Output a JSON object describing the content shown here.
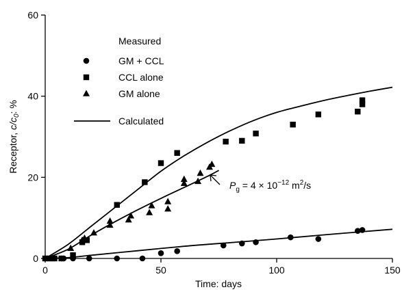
{
  "chart_data": {
    "type": "scatter",
    "xlabel": "Time: days",
    "ylabel_prefix": "Receptor, ",
    "ylabel_var": "c/c",
    "ylabel_sub": "0",
    "ylabel_suffix": ": %",
    "xlim": [
      0,
      150
    ],
    "ylim": [
      0,
      60
    ],
    "xticks": [
      0,
      50,
      100,
      150
    ],
    "yticks": [
      0,
      20,
      40,
      60
    ],
    "grid": false,
    "legend": {
      "placement": "top-left",
      "header": "Measured",
      "line_label": "Calculated"
    },
    "annotation": {
      "var": "P",
      "sub": "g",
      "text": " = 4 × 10",
      "exp": "−12",
      "unit": " m",
      "unit_exp": "2",
      "unit_suffix": "/s",
      "point": [
        71.5,
        21
      ]
    },
    "series": [
      {
        "name": "GM + CCL",
        "marker": "circle",
        "points": [
          [
            0,
            0
          ],
          [
            2,
            0
          ],
          [
            4,
            0
          ],
          [
            7,
            0
          ],
          [
            8,
            0
          ],
          [
            12,
            0
          ],
          [
            19,
            0
          ],
          [
            31,
            0
          ],
          [
            42,
            0
          ],
          [
            50,
            1.3
          ],
          [
            57,
            1.8
          ],
          [
            77,
            3.2
          ],
          [
            85,
            3.7
          ],
          [
            91,
            4
          ],
          [
            106,
            5.2
          ],
          [
            118,
            4.8
          ],
          [
            135,
            6.8
          ],
          [
            137,
            7
          ]
        ]
      },
      {
        "name": "CCL alone",
        "marker": "square",
        "points": [
          [
            0,
            0
          ],
          [
            2,
            0
          ],
          [
            4,
            0
          ],
          [
            7,
            0
          ],
          [
            12,
            0.8
          ],
          [
            16,
            4
          ],
          [
            18,
            4.5
          ],
          [
            31,
            13.2
          ],
          [
            43,
            18.8
          ],
          [
            50,
            23.5
          ],
          [
            57,
            26
          ],
          [
            78,
            28.8
          ],
          [
            85,
            29
          ],
          [
            91,
            30.8
          ],
          [
            107,
            33
          ],
          [
            118,
            35.5
          ],
          [
            135,
            36.2
          ],
          [
            137,
            38
          ],
          [
            137,
            39
          ]
        ]
      },
      {
        "name": "GM alone",
        "marker": "triangle",
        "points": [
          [
            11,
            2.5
          ],
          [
            16,
            4.5
          ],
          [
            17,
            5
          ],
          [
            21,
            6.3
          ],
          [
            28,
            8.2
          ],
          [
            28,
            9.2
          ],
          [
            36,
            9.5
          ],
          [
            37,
            10.5
          ],
          [
            45,
            11.3
          ],
          [
            46,
            13
          ],
          [
            53,
            12.2
          ],
          [
            53,
            14
          ],
          [
            60,
            18.5
          ],
          [
            60,
            19.5
          ],
          [
            66,
            19
          ],
          [
            67,
            21
          ],
          [
            71,
            22.5
          ],
          [
            72,
            23.2
          ]
        ]
      }
    ],
    "calculated_curves": [
      {
        "for": "GM + CCL",
        "points": [
          [
            0,
            0
          ],
          [
            10,
            0.2
          ],
          [
            20,
            0.8
          ],
          [
            40,
            1.9
          ],
          [
            60,
            3
          ],
          [
            80,
            3.9
          ],
          [
            100,
            4.8
          ],
          [
            120,
            5.8
          ],
          [
            150,
            7.2
          ]
        ]
      },
      {
        "for": "CCL alone",
        "points": [
          [
            0,
            0
          ],
          [
            10,
            3.5
          ],
          [
            20,
            8
          ],
          [
            30,
            12.5
          ],
          [
            40,
            17
          ],
          [
            50,
            21.5
          ],
          [
            60,
            25.3
          ],
          [
            70,
            28.6
          ],
          [
            80,
            31.5
          ],
          [
            90,
            34
          ],
          [
            100,
            36
          ],
          [
            110,
            37.5
          ],
          [
            120,
            38.9
          ],
          [
            130,
            40.1
          ],
          [
            140,
            41.2
          ],
          [
            150,
            42.2
          ]
        ]
      },
      {
        "for": "GM alone",
        "points": [
          [
            0,
            0
          ],
          [
            10,
            2.3
          ],
          [
            20,
            5.8
          ],
          [
            30,
            9
          ],
          [
            40,
            12
          ],
          [
            50,
            14.8
          ],
          [
            60,
            17.5
          ],
          [
            70,
            20.2
          ],
          [
            75,
            21.7
          ]
        ]
      }
    ]
  }
}
